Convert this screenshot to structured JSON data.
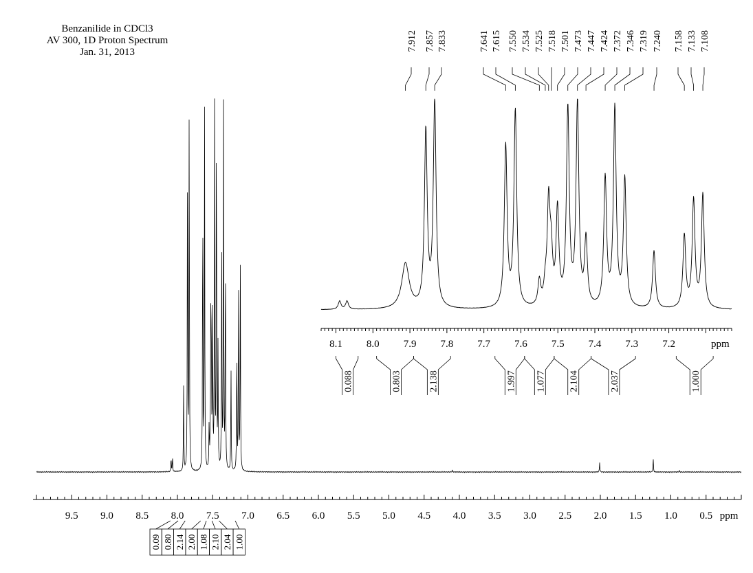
{
  "header": {
    "line1": "Benzanilide in CDCl3",
    "line2": "AV 300, 1D Proton Spectrum",
    "line3": "Jan. 31, 2013"
  },
  "chart_data": [
    {
      "type": "line",
      "name": "full-spectrum",
      "xlabel": "ppm",
      "xlim": [
        10.0,
        0.0
      ],
      "x_reversed": true,
      "tick_labels": [
        "9.5",
        "9.0",
        "8.5",
        "8.0",
        "7.5",
        "7.0",
        "6.5",
        "6.0",
        "5.5",
        "5.0",
        "4.5",
        "4.0",
        "3.5",
        "3.0",
        "2.5",
        "2.0",
        "1.5",
        "1.0",
        "0.5"
      ],
      "peaks": [
        {
          "ppm": 8.09,
          "rel_height": 0.04
        },
        {
          "ppm": 8.07,
          "rel_height": 0.04
        },
        {
          "ppm": 7.912,
          "rel_height": 0.22
        },
        {
          "ppm": 7.857,
          "rel_height": 0.85
        },
        {
          "ppm": 7.833,
          "rel_height": 1.0
        },
        {
          "ppm": 7.641,
          "rel_height": 0.78
        },
        {
          "ppm": 7.615,
          "rel_height": 0.95
        },
        {
          "ppm": 7.55,
          "rel_height": 0.12
        },
        {
          "ppm": 7.534,
          "rel_height": 0.08
        },
        {
          "ppm": 7.525,
          "rel_height": 0.48
        },
        {
          "ppm": 7.518,
          "rel_height": 0.22
        },
        {
          "ppm": 7.501,
          "rel_height": 0.46
        },
        {
          "ppm": 7.473,
          "rel_height": 0.95
        },
        {
          "ppm": 7.447,
          "rel_height": 0.98
        },
        {
          "ppm": 7.424,
          "rel_height": 0.32
        },
        {
          "ppm": 7.372,
          "rel_height": 0.62
        },
        {
          "ppm": 7.346,
          "rel_height": 0.96
        },
        {
          "ppm": 7.319,
          "rel_height": 0.62
        },
        {
          "ppm": 7.24,
          "rel_height": 0.28
        },
        {
          "ppm": 7.158,
          "rel_height": 0.35
        },
        {
          "ppm": 7.133,
          "rel_height": 0.52
        },
        {
          "ppm": 7.108,
          "rel_height": 0.55
        },
        {
          "ppm": 4.1,
          "rel_height": 0.005
        },
        {
          "ppm": 2.01,
          "rel_height": 0.025
        },
        {
          "ppm": 1.25,
          "rel_height": 0.037
        },
        {
          "ppm": 0.88,
          "rel_height": 0.004
        }
      ],
      "integrals": [
        "0.09",
        "0.80",
        "2.14",
        "2.00",
        "1.08",
        "2.10",
        "2.04",
        "1.00"
      ]
    },
    {
      "type": "line",
      "name": "expanded-inset",
      "xlabel": "ppm",
      "xlim": [
        8.14,
        7.03
      ],
      "x_reversed": true,
      "tick_labels": [
        "8.1",
        "8.0",
        "7.9",
        "7.8",
        "7.7",
        "7.6",
        "7.5",
        "7.4",
        "7.3",
        "7.2"
      ],
      "peak_labels": [
        "7.912",
        "7.857",
        "7.833",
        "7.641",
        "7.615",
        "7.550",
        "7.534",
        "7.525",
        "7.518",
        "7.501",
        "7.473",
        "7.447",
        "7.424",
        "7.372",
        "7.346",
        "7.319",
        "7.240",
        "7.158",
        "7.133",
        "7.108"
      ],
      "integral_regions": [
        {
          "value": "0.088",
          "from": 8.1,
          "to": 8.04
        },
        {
          "value": "0.803",
          "from": 7.99,
          "to": 7.89
        },
        {
          "value": "2.138",
          "from": 7.89,
          "to": 7.79
        },
        {
          "value": "1.997",
          "from": 7.67,
          "to": 7.59
        },
        {
          "value": "1.077",
          "from": 7.59,
          "to": 7.51
        },
        {
          "value": "2.104",
          "from": 7.51,
          "to": 7.41
        },
        {
          "value": "2.037",
          "from": 7.41,
          "to": 7.29
        },
        {
          "value": "1.000",
          "from": 7.18,
          "to": 7.08
        }
      ]
    }
  ]
}
